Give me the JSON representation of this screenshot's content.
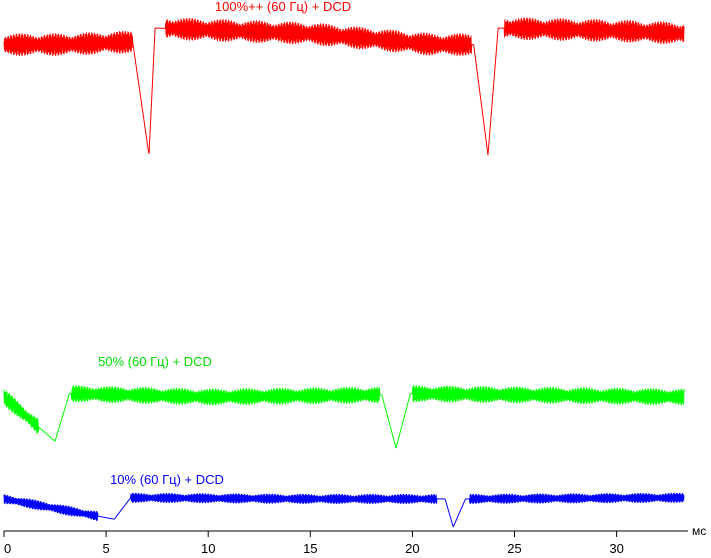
{
  "chart_data": {
    "type": "line",
    "xlabel": "мс",
    "xlim": [
      0,
      33.3
    ],
    "x_ticks": [
      0,
      5,
      10,
      15,
      20,
      25,
      30
    ],
    "grid": false,
    "series": [
      {
        "name": "100%++ (60 Гц) + DCD",
        "color": "#ff0000",
        "baseline_early": 0.8,
        "baseline_late": 0.9,
        "ripple_amplitude": 0.08,
        "dips": [
          {
            "time": 7.1,
            "depth": 0.0
          },
          {
            "time": 23.7,
            "depth": 0.0
          }
        ],
        "samples": [
          {
            "x": 0,
            "y": 0.8
          },
          {
            "x": 3,
            "y": 0.8
          },
          {
            "x": 6.3,
            "y": 0.82
          },
          {
            "x": 7.1,
            "y": 0.0
          },
          {
            "x": 7.4,
            "y": 0.92
          },
          {
            "x": 15,
            "y": 0.88
          },
          {
            "x": 21,
            "y": 0.8
          },
          {
            "x": 23.0,
            "y": 0.8
          },
          {
            "x": 23.7,
            "y": 0.0
          },
          {
            "x": 24.2,
            "y": 0.92
          },
          {
            "x": 30,
            "y": 0.9
          },
          {
            "x": 33.3,
            "y": 0.88
          }
        ]
      },
      {
        "name": "50% (60 Гц) + DCD",
        "color": "#00ff00",
        "baseline": 0.75,
        "ripple_amplitude": 0.12,
        "dips": [
          {
            "time": 2.5,
            "depth": 0.1
          },
          {
            "time": 19.2,
            "depth": 0.0
          }
        ],
        "samples": [
          {
            "x": 0,
            "y": 0.75
          },
          {
            "x": 2.5,
            "y": 0.1
          },
          {
            "x": 3.2,
            "y": 0.8
          },
          {
            "x": 10,
            "y": 0.75
          },
          {
            "x": 18.5,
            "y": 0.78
          },
          {
            "x": 19.2,
            "y": 0.0
          },
          {
            "x": 19.9,
            "y": 0.8
          },
          {
            "x": 33.3,
            "y": 0.75
          }
        ]
      },
      {
        "name": "10% (60 Гц) + DCD",
        "color": "#0000ff",
        "baseline": 0.72,
        "ripple_amplitude": 0.12,
        "dips": [
          {
            "time": 5.4,
            "depth": 0.2
          },
          {
            "time": 22.0,
            "depth": 0.0
          }
        ],
        "samples": [
          {
            "x": 0,
            "y": 0.72
          },
          {
            "x": 5.4,
            "y": 0.2
          },
          {
            "x": 6.2,
            "y": 0.75
          },
          {
            "x": 15,
            "y": 0.72
          },
          {
            "x": 21.6,
            "y": 0.72
          },
          {
            "x": 22.0,
            "y": 0.0
          },
          {
            "x": 22.6,
            "y": 0.72
          },
          {
            "x": 33.3,
            "y": 0.75
          }
        ]
      }
    ]
  }
}
